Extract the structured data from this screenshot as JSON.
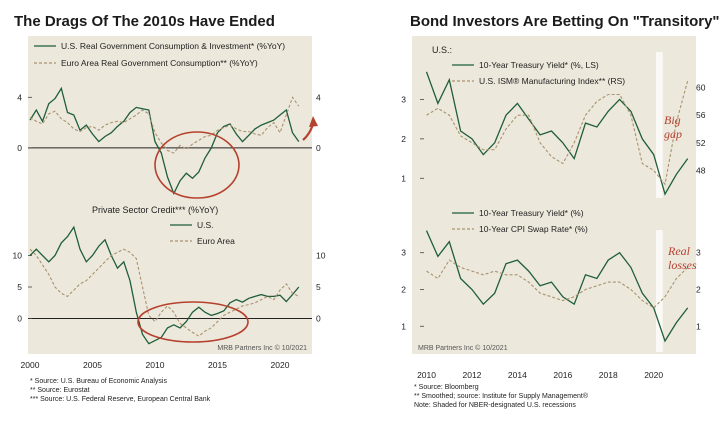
{
  "left_title": "The Drags Of The  2010s Have Ended",
  "right_title": "Bond Investors Are Betting On \"Transitory\"",
  "colors": {
    "panel_bg": "#ede8dc",
    "green": "#1f5e3a",
    "tan": "#a8936f",
    "red": "#b5412f"
  },
  "annotations": {
    "big_gap": "Big gap",
    "real_losses": "Real losses"
  },
  "left_footnotes": [
    "*  Source: U.S. Bureau of Economic Analysis",
    "**  Source: Eurostat",
    "***  Source: U.S. Federal Reserve, European Central Bank"
  ],
  "left_credit": "MRB Partners Inc © 10/2021",
  "right_credit": "MRB Partners Inc © 10/2021",
  "right_footnotes": [
    "*  Source: Bloomberg",
    "**  Smoothed; source: Institute for Supply Management®",
    "Note: Shaded for NBER-designated U.S. recessions"
  ],
  "chart_data": [
    {
      "type": "line",
      "title": "",
      "x": [
        2000.0,
        2000.5,
        2001.0,
        2001.5,
        2002.0,
        2002.5,
        2003.0,
        2003.5,
        2004.0,
        2004.5,
        2005.0,
        2005.5,
        2006.0,
        2006.5,
        2007.0,
        2007.5,
        2008.0,
        2008.5,
        2009.0,
        2009.5,
        2010.0,
        2010.5,
        2011.0,
        2011.5,
        2012.0,
        2012.5,
        2013.0,
        2013.5,
        2014.0,
        2014.5,
        2015.0,
        2015.5,
        2016.0,
        2016.5,
        2017.0,
        2017.5,
        2018.0,
        2018.5,
        2019.0,
        2019.5,
        2020.0,
        2020.5,
        2021.0,
        2021.5
      ],
      "series": [
        {
          "name": "U.S. Real Government Consumption & Investment* (%YoY)",
          "style": "solid",
          "values": [
            2.2,
            3.0,
            2.1,
            3.5,
            3.9,
            4.7,
            2.8,
            2.6,
            1.4,
            1.8,
            1.1,
            0.5,
            0.9,
            1.2,
            1.7,
            2.1,
            2.8,
            3.2,
            3.1,
            3.0,
            0.5,
            -0.4,
            -2.3,
            -3.6,
            -2.6,
            -2.0,
            -2.4,
            -1.9,
            -0.8,
            0.0,
            1.2,
            1.7,
            1.9,
            1.1,
            0.5,
            1.0,
            1.5,
            1.8,
            2.0,
            2.2,
            2.6,
            3.0,
            1.2,
            0.5
          ]
        },
        {
          "name": "Euro Area Real Government Consumption** (%YoY)",
          "style": "dashed",
          "values": [
            2.4,
            2.1,
            1.9,
            2.7,
            2.9,
            2.3,
            2.0,
            1.5,
            1.3,
            1.6,
            1.7,
            1.4,
            1.8,
            2.0,
            2.1,
            2.0,
            2.3,
            2.6,
            3.0,
            2.7,
            1.2,
            0.4,
            -0.2,
            -0.4,
            0.2,
            -0.1,
            0.3,
            0.6,
            0.9,
            1.0,
            1.4,
            1.6,
            1.8,
            1.5,
            1.3,
            1.3,
            1.1,
            1.0,
            1.6,
            2.0,
            1.2,
            2.6,
            4.0,
            3.3
          ]
        }
      ],
      "ylim": [
        -3.8,
        6.0
      ],
      "ylabel_ticks": [
        "4",
        "0"
      ]
    },
    {
      "type": "line",
      "title": "Private Sector Credit*** (%YoY)",
      "x": [
        2000.0,
        2000.5,
        2001.0,
        2001.5,
        2002.0,
        2002.5,
        2003.0,
        2003.5,
        2004.0,
        2004.5,
        2005.0,
        2005.5,
        2006.0,
        2006.5,
        2007.0,
        2007.5,
        2008.0,
        2008.5,
        2009.0,
        2009.5,
        2010.0,
        2010.5,
        2011.0,
        2011.5,
        2012.0,
        2012.5,
        2013.0,
        2013.5,
        2014.0,
        2014.5,
        2015.0,
        2015.5,
        2016.0,
        2016.5,
        2017.0,
        2017.5,
        2018.0,
        2018.5,
        2019.0,
        2019.5,
        2020.0,
        2020.5,
        2021.0,
        2021.5
      ],
      "series": [
        {
          "name": "U.S.",
          "style": "solid",
          "values": [
            10.0,
            11.0,
            10.0,
            9.0,
            10.0,
            12.0,
            13.0,
            14.5,
            11.0,
            9.0,
            10.0,
            11.5,
            12.5,
            10.0,
            8.0,
            9.0,
            6.0,
            1.0,
            -2.5,
            -4.0,
            -3.5,
            -3.0,
            -1.5,
            -1.0,
            -1.5,
            -0.5,
            1.0,
            1.8,
            1.0,
            0.5,
            0.8,
            1.2,
            2.5,
            3.0,
            2.6,
            3.2,
            3.5,
            3.8,
            3.5,
            3.5,
            3.7,
            2.7,
            3.8,
            5.0
          ]
        },
        {
          "name": "Euro Area",
          "style": "dashed",
          "values": [
            11.0,
            10.0,
            8.5,
            7.0,
            5.0,
            4.0,
            3.5,
            4.5,
            5.5,
            6.0,
            7.0,
            8.0,
            9.0,
            10.0,
            10.5,
            11.0,
            10.5,
            9.5,
            5.0,
            0.5,
            -0.5,
            1.0,
            2.0,
            1.0,
            -0.8,
            -1.5,
            -2.2,
            -2.8,
            -2.0,
            -1.5,
            -0.5,
            0.5,
            1.0,
            1.5,
            2.0,
            2.2,
            2.5,
            3.0,
            3.5,
            3.0,
            4.5,
            5.5,
            4.0,
            3.5
          ]
        }
      ],
      "ylim": [
        -5.0,
        15.0
      ],
      "ylabel_ticks": [
        "10",
        "5",
        "0"
      ],
      "xlabel_ticks": [
        "2000",
        "2005",
        "2010",
        "2015",
        "2020"
      ]
    },
    {
      "type": "line",
      "title": "U.S.:",
      "x": [
        2010.0,
        2010.5,
        2011.0,
        2011.5,
        2012.0,
        2012.5,
        2013.0,
        2013.5,
        2014.0,
        2014.5,
        2015.0,
        2015.5,
        2016.0,
        2016.5,
        2017.0,
        2017.5,
        2018.0,
        2018.5,
        2019.0,
        2019.5,
        2020.0,
        2020.5,
        2021.0,
        2021.5
      ],
      "series": [
        {
          "name": "10-Year Treasury Yield* (%, LS)",
          "style": "solid",
          "axis": "left",
          "values": [
            3.7,
            2.9,
            3.5,
            2.2,
            2.0,
            1.6,
            1.9,
            2.6,
            2.9,
            2.5,
            2.1,
            2.2,
            1.9,
            1.5,
            2.4,
            2.3,
            2.7,
            3.0,
            2.7,
            2.0,
            1.6,
            0.6,
            1.1,
            1.5
          ]
        },
        {
          "name": "U.S. ISM® Manufacturing Index** (RS)",
          "style": "dashed",
          "axis": "right",
          "values": [
            56,
            57,
            56,
            53,
            52,
            51,
            51,
            54,
            56,
            56,
            52,
            50,
            49,
            52,
            56,
            58,
            59,
            59,
            56,
            49,
            48,
            46,
            55,
            61
          ]
        }
      ],
      "ylim": [
        0.5,
        4.0
      ],
      "y2lim": [
        44,
        64
      ],
      "ylabel_ticks": [
        "3",
        "2",
        "1"
      ],
      "y2label_ticks": [
        "60",
        "56",
        "52",
        "48"
      ]
    },
    {
      "type": "line",
      "title": "",
      "x": [
        2010.0,
        2010.5,
        2011.0,
        2011.5,
        2012.0,
        2012.5,
        2013.0,
        2013.5,
        2014.0,
        2014.5,
        2015.0,
        2015.5,
        2016.0,
        2016.5,
        2017.0,
        2017.5,
        2018.0,
        2018.5,
        2019.0,
        2019.5,
        2020.0,
        2020.5,
        2021.0,
        2021.5
      ],
      "series": [
        {
          "name": "10-Year Treasury Yield* (%)",
          "style": "solid",
          "values": [
            3.6,
            2.9,
            3.3,
            2.3,
            2.0,
            1.6,
            1.9,
            2.7,
            2.8,
            2.5,
            2.1,
            2.2,
            1.8,
            1.6,
            2.4,
            2.3,
            2.8,
            3.0,
            2.6,
            1.9,
            1.5,
            0.6,
            1.1,
            1.5
          ]
        },
        {
          "name": "10-Year CPI Swap Rate* (%)",
          "style": "dashed",
          "values": [
            2.5,
            2.3,
            2.8,
            2.6,
            2.5,
            2.4,
            2.5,
            2.4,
            2.4,
            2.2,
            1.9,
            1.8,
            1.7,
            1.8,
            2.0,
            2.1,
            2.2,
            2.2,
            2.0,
            1.7,
            1.5,
            1.8,
            2.3,
            2.6
          ]
        }
      ],
      "ylim": [
        0.3,
        3.4
      ],
      "ylabel_ticks": [
        "3",
        "2",
        "1"
      ],
      "y2label_ticks": [
        "3",
        "2",
        "1"
      ],
      "xlabel_ticks": [
        "2010",
        "2012",
        "2014",
        "2016",
        "2018",
        "2020"
      ]
    }
  ]
}
